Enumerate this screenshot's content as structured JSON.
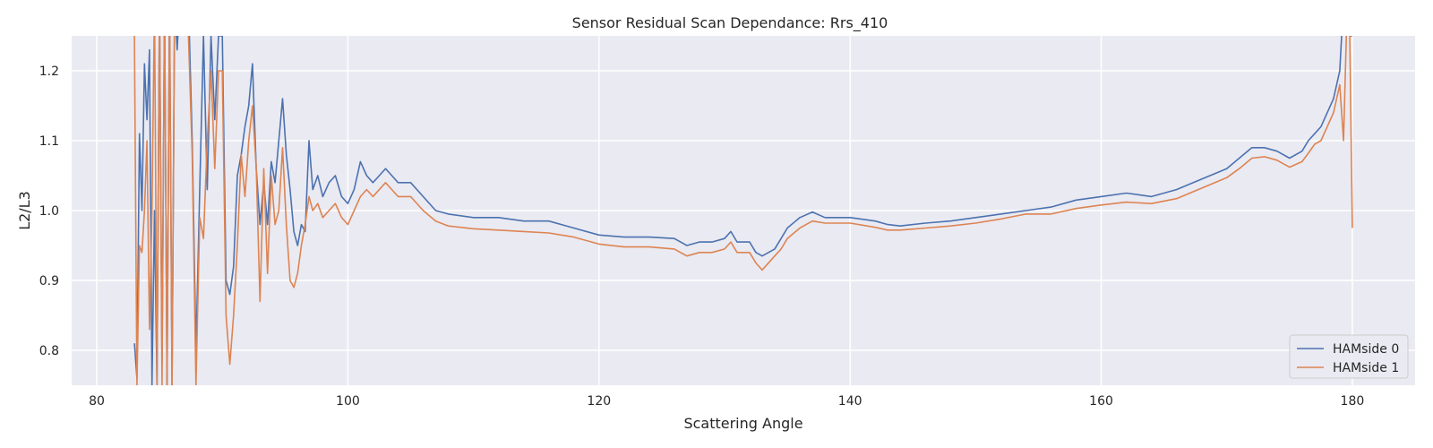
{
  "chart_data": {
    "type": "line",
    "title": "Sensor Residual Scan Dependance: Rrs_410",
    "xlabel": "Scattering Angle",
    "ylabel": "L2/L3",
    "xlim": [
      78,
      185
    ],
    "ylim": [
      0.75,
      1.25
    ],
    "xticks": [
      80,
      100,
      120,
      140,
      160,
      180
    ],
    "xtick_labels": [
      "80",
      "100",
      "120",
      "140",
      "160",
      "180"
    ],
    "yticks": [
      0.8,
      0.9,
      1.0,
      1.1,
      1.2
    ],
    "ytick_labels": [
      "0.8",
      "0.9",
      "1.0",
      "1.1",
      "1.2"
    ],
    "grid": true,
    "legend_position": "lower-right",
    "background_color": "#eaeaf2",
    "series": [
      {
        "name": "HAMside 0",
        "color": "#4c72b0",
        "x": [
          83.0,
          83.2,
          83.4,
          83.6,
          83.8,
          84.0,
          84.2,
          84.4,
          84.6,
          84.8,
          85.0,
          85.2,
          85.4,
          85.6,
          85.8,
          86.0,
          86.2,
          86.4,
          86.6,
          86.8,
          87.0,
          87.3,
          87.6,
          87.9,
          88.2,
          88.5,
          88.8,
          89.1,
          89.4,
          89.7,
          90.0,
          90.3,
          90.6,
          90.9,
          91.2,
          91.5,
          91.8,
          92.1,
          92.4,
          92.7,
          93.0,
          93.3,
          93.6,
          93.9,
          94.2,
          94.5,
          94.8,
          95.1,
          95.4,
          95.7,
          96.0,
          96.3,
          96.6,
          96.9,
          97.2,
          97.6,
          98.0,
          98.5,
          99.0,
          99.5,
          100.0,
          100.5,
          101.0,
          101.5,
          102.0,
          102.5,
          103.0,
          103.5,
          104.0,
          104.5,
          105.0,
          106.0,
          107.0,
          108.0,
          110.0,
          112.0,
          114.0,
          116.0,
          118.0,
          120.0,
          122.0,
          124.0,
          126.0,
          127.0,
          128.0,
          129.0,
          130.0,
          130.5,
          131.0,
          132.0,
          132.5,
          133.0,
          134.0,
          134.5,
          135.0,
          136.0,
          137.0,
          138.0,
          140.0,
          142.0,
          143.0,
          144.0,
          146.0,
          148.0,
          150.0,
          152.0,
          154.0,
          156.0,
          158.0,
          160.0,
          162.0,
          164.0,
          166.0,
          168.0,
          170.0,
          171.0,
          172.0,
          173.0,
          174.0,
          175.0,
          176.0,
          176.5,
          177.0,
          177.5,
          178.0,
          178.5,
          179.0,
          179.3,
          179.6,
          179.8,
          180.0
        ],
        "y": [
          0.81,
          0.76,
          1.11,
          1.0,
          1.21,
          1.13,
          1.23,
          0.75,
          1.0,
          0.75,
          1.3,
          0.78,
          1.3,
          0.75,
          1.3,
          0.75,
          1.3,
          1.23,
          1.3,
          1.3,
          1.3,
          1.3,
          1.1,
          0.8,
          1.03,
          1.25,
          1.03,
          1.25,
          1.13,
          1.25,
          1.25,
          0.9,
          0.88,
          0.92,
          1.05,
          1.08,
          1.12,
          1.15,
          1.21,
          1.06,
          0.98,
          1.04,
          0.98,
          1.07,
          1.04,
          1.1,
          1.16,
          1.08,
          1.03,
          0.97,
          0.95,
          0.98,
          0.97,
          1.1,
          1.03,
          1.05,
          1.02,
          1.04,
          1.05,
          1.02,
          1.01,
          1.03,
          1.07,
          1.05,
          1.04,
          1.05,
          1.06,
          1.05,
          1.04,
          1.04,
          1.04,
          1.02,
          1.0,
          0.995,
          0.99,
          0.99,
          0.985,
          0.985,
          0.975,
          0.965,
          0.962,
          0.962,
          0.96,
          0.95,
          0.955,
          0.955,
          0.96,
          0.97,
          0.955,
          0.955,
          0.94,
          0.935,
          0.945,
          0.96,
          0.975,
          0.99,
          0.998,
          0.99,
          0.99,
          0.985,
          0.98,
          0.978,
          0.982,
          0.985,
          0.99,
          0.995,
          1.0,
          1.005,
          1.015,
          1.02,
          1.025,
          1.02,
          1.03,
          1.045,
          1.06,
          1.075,
          1.09,
          1.09,
          1.085,
          1.075,
          1.085,
          1.1,
          1.11,
          1.12,
          1.14,
          1.16,
          1.2,
          1.3,
          1.3,
          1.25,
          1.25
        ]
      },
      {
        "name": "HAMside 1",
        "color": "#dd8452",
        "x": [
          83.0,
          83.2,
          83.4,
          83.6,
          83.8,
          84.0,
          84.2,
          84.4,
          84.6,
          84.8,
          85.0,
          85.2,
          85.4,
          85.6,
          85.8,
          86.0,
          86.2,
          86.4,
          86.6,
          86.8,
          87.0,
          87.3,
          87.6,
          87.9,
          88.2,
          88.5,
          88.8,
          89.1,
          89.4,
          89.7,
          90.0,
          90.3,
          90.6,
          90.9,
          91.2,
          91.5,
          91.8,
          92.1,
          92.4,
          92.7,
          93.0,
          93.3,
          93.6,
          93.9,
          94.2,
          94.5,
          94.8,
          95.1,
          95.4,
          95.7,
          96.0,
          96.3,
          96.6,
          96.9,
          97.2,
          97.6,
          98.0,
          98.5,
          99.0,
          99.5,
          100.0,
          100.5,
          101.0,
          101.5,
          102.0,
          102.5,
          103.0,
          103.5,
          104.0,
          104.5,
          105.0,
          106.0,
          107.0,
          108.0,
          110.0,
          112.0,
          114.0,
          116.0,
          118.0,
          120.0,
          122.0,
          124.0,
          126.0,
          127.0,
          128.0,
          129.0,
          130.0,
          130.5,
          131.0,
          132.0,
          132.5,
          133.0,
          134.0,
          134.5,
          135.0,
          136.0,
          137.0,
          138.0,
          140.0,
          142.0,
          143.0,
          144.0,
          146.0,
          148.0,
          150.0,
          152.0,
          154.0,
          156.0,
          158.0,
          160.0,
          162.0,
          164.0,
          166.0,
          168.0,
          170.0,
          171.0,
          172.0,
          173.0,
          174.0,
          175.0,
          176.0,
          176.5,
          177.0,
          177.5,
          178.0,
          178.5,
          179.0,
          179.3,
          179.6,
          179.8,
          180.0
        ],
        "y": [
          1.25,
          0.75,
          0.95,
          0.94,
          1.0,
          1.1,
          0.83,
          1.0,
          1.3,
          0.75,
          1.3,
          0.75,
          1.3,
          0.75,
          1.3,
          0.75,
          1.3,
          1.3,
          1.3,
          1.3,
          1.3,
          1.25,
          1.08,
          0.75,
          0.99,
          0.96,
          1.1,
          1.2,
          1.06,
          1.2,
          1.2,
          0.85,
          0.78,
          0.85,
          0.95,
          1.08,
          1.02,
          1.1,
          1.15,
          1.06,
          0.87,
          1.06,
          0.91,
          1.05,
          0.98,
          1.0,
          1.09,
          0.98,
          0.9,
          0.89,
          0.91,
          0.95,
          0.98,
          1.02,
          1.0,
          1.01,
          0.99,
          1.0,
          1.01,
          0.99,
          0.98,
          1.0,
          1.02,
          1.03,
          1.02,
          1.03,
          1.04,
          1.03,
          1.02,
          1.02,
          1.02,
          1.0,
          0.985,
          0.978,
          0.974,
          0.972,
          0.97,
          0.968,
          0.962,
          0.952,
          0.948,
          0.948,
          0.945,
          0.935,
          0.94,
          0.94,
          0.945,
          0.955,
          0.94,
          0.94,
          0.925,
          0.915,
          0.935,
          0.945,
          0.96,
          0.975,
          0.985,
          0.982,
          0.982,
          0.976,
          0.972,
          0.972,
          0.975,
          0.978,
          0.982,
          0.988,
          0.995,
          0.995,
          1.003,
          1.008,
          1.012,
          1.01,
          1.017,
          1.032,
          1.047,
          1.06,
          1.075,
          1.077,
          1.072,
          1.062,
          1.07,
          1.082,
          1.095,
          1.1,
          1.12,
          1.14,
          1.18,
          1.1,
          1.3,
          1.25,
          0.975
        ]
      }
    ]
  }
}
